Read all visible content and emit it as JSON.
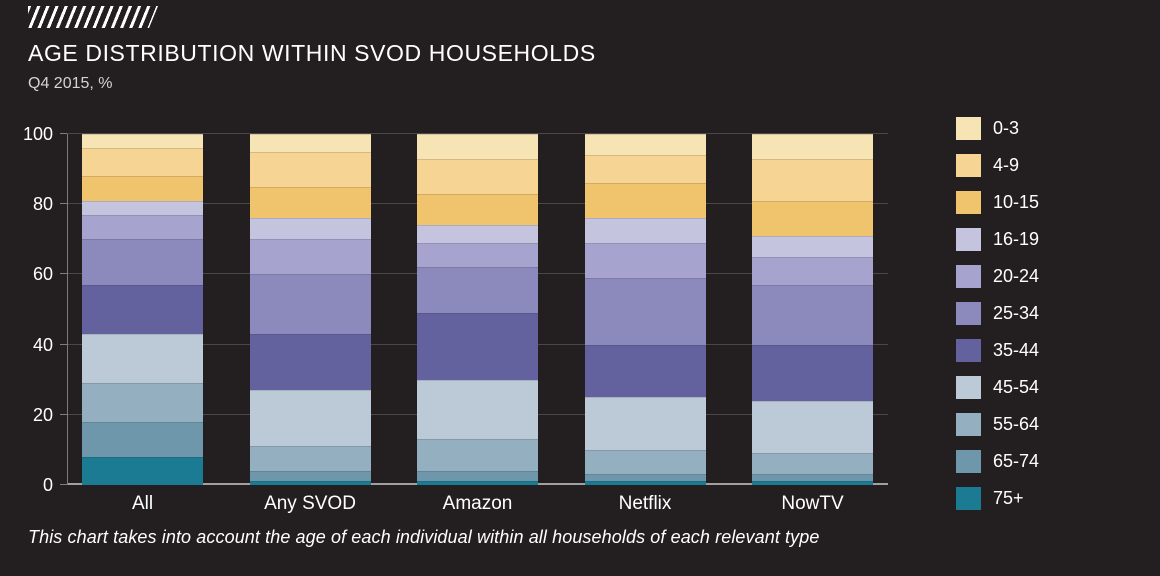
{
  "chart_data": {
    "type": "bar",
    "stacked": true,
    "title": "AGE DISTRIBUTION WITHIN SVOD HOUSEHOLDS",
    "subtitle": "Q4 2015, %",
    "footnote": "This chart takes into account the age of each individual within all households of each relevant type",
    "categories": [
      "All",
      "Any SVOD",
      "Amazon",
      "Netflix",
      "NowTV"
    ],
    "ylim": [
      0,
      100
    ],
    "yticks": [
      0,
      20,
      40,
      60,
      80,
      100
    ],
    "grid": true,
    "legend_position": "right",
    "series": [
      {
        "name": "0-3",
        "color": "#f7e4b5",
        "values": [
          4,
          5,
          7,
          6,
          7
        ]
      },
      {
        "name": "4-9",
        "color": "#f5d494",
        "values": [
          8,
          10,
          10,
          8,
          12
        ]
      },
      {
        "name": "10-15",
        "color": "#efc46d",
        "values": [
          7,
          9,
          9,
          10,
          10
        ]
      },
      {
        "name": "16-19",
        "color": "#c5c4df",
        "values": [
          4,
          6,
          5,
          7,
          6
        ]
      },
      {
        "name": "20-24",
        "color": "#a6a4cf",
        "values": [
          7,
          10,
          7,
          10,
          8
        ]
      },
      {
        "name": "25-34",
        "color": "#8c8abc",
        "values": [
          13,
          17,
          13,
          19,
          17
        ]
      },
      {
        "name": "35-44",
        "color": "#64619f",
        "values": [
          14,
          16,
          19,
          15,
          16
        ]
      },
      {
        "name": "45-54",
        "color": "#bccad7",
        "values": [
          14,
          16,
          17,
          15,
          15
        ]
      },
      {
        "name": "55-64",
        "color": "#93afc0",
        "values": [
          11,
          7,
          9,
          7,
          6
        ]
      },
      {
        "name": "65-74",
        "color": "#6f97ac",
        "values": [
          10,
          3,
          3,
          2,
          2
        ]
      },
      {
        "name": "75+",
        "color": "#1a7b93",
        "values": [
          8,
          1,
          1,
          1,
          1
        ]
      }
    ]
  },
  "colors": {
    "background": "#231f20",
    "text": "#ffffff",
    "grid": "#4b4748",
    "axis": "#a3a0a1"
  }
}
